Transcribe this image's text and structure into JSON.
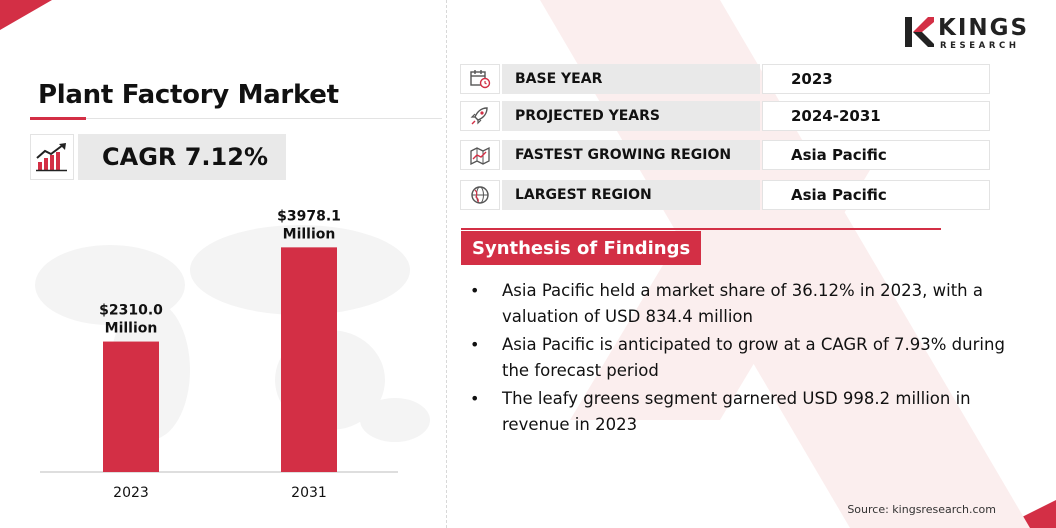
{
  "brand": {
    "name_line1": "KINGS",
    "name_line2": "RESEARCH",
    "accent": "#d32f45"
  },
  "title": "Plant Factory Market",
  "cagr": {
    "text": "CAGR 7.12%",
    "icon": "rising-bar-chart-icon"
  },
  "chart_data": {
    "type": "bar",
    "categories": [
      "2023",
      "2031"
    ],
    "values": [
      2310.0,
      3978.1
    ],
    "value_labels": [
      {
        "line1": "$2310.0",
        "line2": "Million"
      },
      {
        "line1": "$3978.1",
        "line2": "Million"
      }
    ],
    "bar_color": "#d32f45",
    "ylim": [
      0,
      4250
    ]
  },
  "info_rows": [
    {
      "icon": "calendar-clock-icon",
      "label": "BASE YEAR",
      "value": "2023"
    },
    {
      "icon": "rocket-icon",
      "label": "PROJECTED YEARS",
      "value": "2024-2031"
    },
    {
      "icon": "region-map-icon",
      "label": "FASTEST GROWING REGION",
      "value": "Asia Pacific"
    },
    {
      "icon": "globe-icon",
      "label": "LARGEST REGION",
      "value": "Asia Pacific"
    }
  ],
  "synthesis": {
    "heading": "Synthesis of Findings",
    "items": [
      "Asia Pacific held a market share of 36.12% in 2023, with a valuation of USD 834.4 million",
      "Asia Pacific is anticipated to grow at a CAGR of 7.93% during the forecast period",
      "The leafy greens segment garnered USD 998.2 million in revenue in 2023"
    ]
  },
  "source": "Source: kingsresearch.com"
}
